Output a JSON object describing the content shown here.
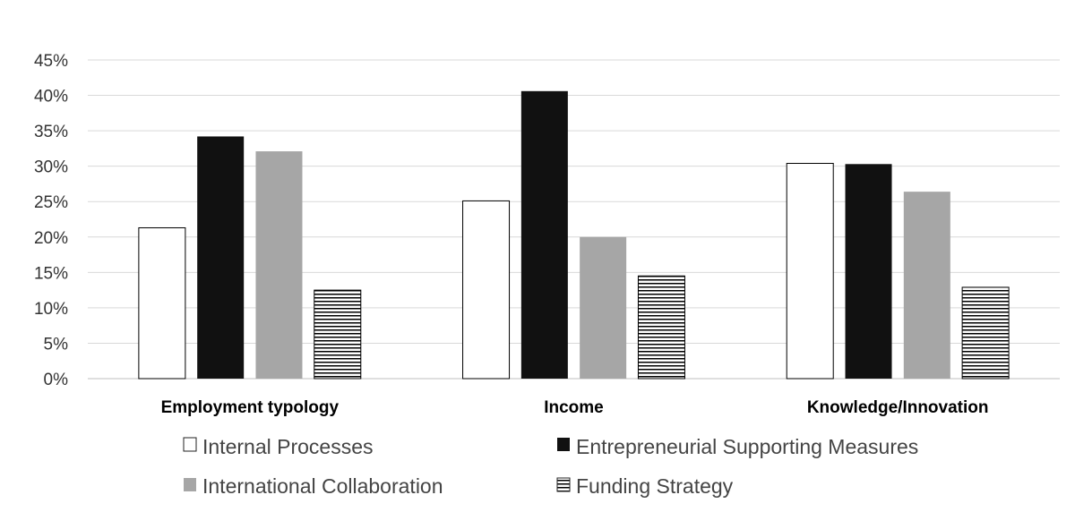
{
  "chart_data": {
    "type": "bar",
    "title": "",
    "xlabel": "",
    "ylabel": "",
    "categories": [
      "Employment typology",
      "Income",
      "Knowledge/Innovation"
    ],
    "series": [
      {
        "name": "Internal Processes",
        "values": [
          21.3,
          25.1,
          30.4
        ],
        "fill": "#ffffff",
        "pattern": "none"
      },
      {
        "name": "Entrepreneurial Supporting Measures",
        "values": [
          34.2,
          40.6,
          30.3
        ],
        "fill": "#111111",
        "pattern": "none"
      },
      {
        "name": "International Collaboration",
        "values": [
          32.1,
          20.0,
          26.4
        ],
        "fill": "#a6a6a6",
        "pattern": "none"
      },
      {
        "name": "Funding Strategy",
        "values": [
          12.5,
          14.5,
          12.9
        ],
        "fill": "#ffffff",
        "pattern": "horizontal-lines"
      }
    ],
    "ylim": [
      0,
      45
    ],
    "yticks": [
      0,
      5,
      10,
      15,
      20,
      25,
      30,
      35,
      40,
      45
    ],
    "ytick_labels": [
      "0%",
      "5%",
      "10%",
      "15%",
      "20%",
      "25%",
      "30%",
      "35%",
      "40%",
      "45%"
    ],
    "grid": true,
    "legend_position": "bottom"
  }
}
